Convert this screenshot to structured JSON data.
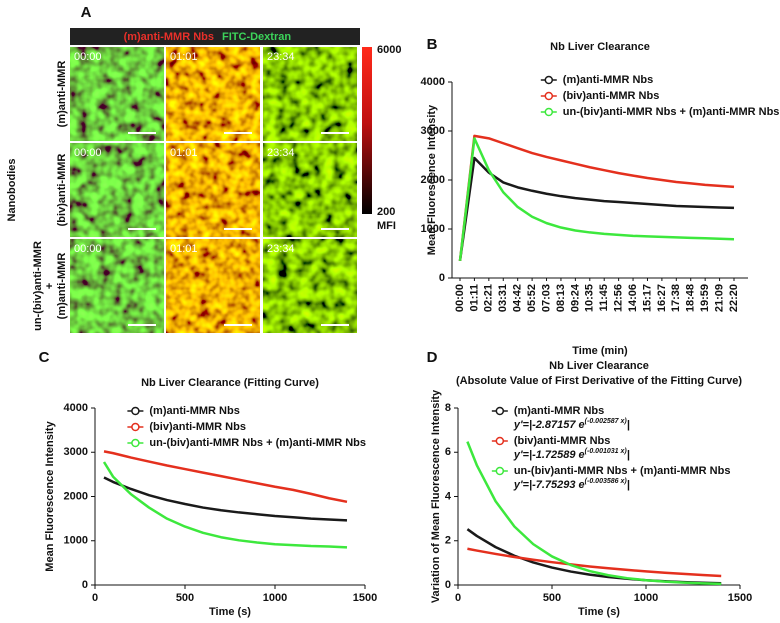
{
  "image_panel": {
    "panel_label": "A",
    "header": {
      "red_text": "(m)anti-MMR Nbs",
      "green_text": "FITC-Dextran"
    },
    "group_label": "Nanobodies",
    "rows": [
      {
        "label": [
          "(m)anti-MMR"
        ]
      },
      {
        "label": [
          "(biv)anti-MMR"
        ]
      },
      {
        "label": [
          "un-(biv)anti-MMR",
          "+",
          "(m)anti-MMR"
        ]
      }
    ],
    "timestamps": [
      "00:00",
      "01:01",
      "23:34"
    ],
    "colorbar": {
      "max_label": "6000",
      "min_label": "200",
      "unit": "MFI"
    }
  },
  "chart_data": [
    {
      "type": "line",
      "panel_label": "B",
      "title": "Nb Liver Clearance",
      "x_label": "Time (min)",
      "y_label": "Mean Fluorescence Intensity",
      "categories": [
        "00:00",
        "01:11",
        "02:21",
        "03:31",
        "04:42",
        "05:52",
        "07:03",
        "08:13",
        "09:24",
        "10:35",
        "11:45",
        "12:56",
        "14:06",
        "15:17",
        "16:27",
        "17:38",
        "18:48",
        "19:59",
        "21:09",
        "22:20"
      ],
      "ylim": [
        0,
        4000
      ],
      "yticks": [
        0,
        1000,
        2000,
        3000,
        4000
      ],
      "legend": "upper-right",
      "series": [
        {
          "name": "(m)anti-MMR Nbs",
          "color": "#1a1a1a",
          "values": [
            350,
            2450,
            2150,
            1950,
            1850,
            1780,
            1720,
            1670,
            1630,
            1600,
            1570,
            1550,
            1530,
            1510,
            1490,
            1470,
            1460,
            1450,
            1440,
            1430
          ]
        },
        {
          "name": "(biv)anti-MMR Nbs",
          "color": "#e4301e",
          "values": [
            350,
            2900,
            2850,
            2750,
            2650,
            2550,
            2470,
            2400,
            2330,
            2260,
            2200,
            2140,
            2090,
            2040,
            2000,
            1960,
            1930,
            1900,
            1880,
            1860
          ]
        },
        {
          "name": "un-(biv)anti-MMR Nbs + (m)anti-MMR Nbs",
          "color": "#3de83d",
          "values": [
            350,
            2850,
            2200,
            1750,
            1450,
            1250,
            1120,
            1030,
            970,
            930,
            900,
            880,
            860,
            850,
            840,
            830,
            820,
            810,
            800,
            790
          ]
        }
      ]
    },
    {
      "type": "line",
      "panel_label": "C",
      "title": "Nb Liver Clearance (Fitting Curve)",
      "x_label": "Time (s)",
      "y_label": "Mean Fluorescence Intensity",
      "x": [
        50,
        100,
        200,
        300,
        400,
        500,
        600,
        700,
        800,
        900,
        1000,
        1100,
        1200,
        1300,
        1400
      ],
      "xlim": [
        0,
        1500
      ],
      "xticks": [
        0,
        500,
        1000,
        1500
      ],
      "ylim": [
        0,
        4000
      ],
      "yticks": [
        0,
        1000,
        2000,
        3000,
        4000
      ],
      "legend": "upper-left",
      "series": [
        {
          "name": "(m)anti-MMR Nbs",
          "color": "#1a1a1a",
          "values": [
            2430,
            2330,
            2170,
            2030,
            1920,
            1830,
            1750,
            1690,
            1640,
            1600,
            1560,
            1530,
            1500,
            1480,
            1460
          ]
        },
        {
          "name": "(biv)anti-MMR Nbs",
          "color": "#e4301e",
          "values": [
            3020,
            2980,
            2880,
            2790,
            2700,
            2620,
            2540,
            2460,
            2380,
            2300,
            2220,
            2150,
            2060,
            1960,
            1880
          ]
        },
        {
          "name": "un-(biv)anti-MMR Nbs + (m)anti-MMR Nbs",
          "color": "#3de83d",
          "values": [
            2780,
            2450,
            2050,
            1750,
            1500,
            1320,
            1180,
            1080,
            1010,
            960,
            920,
            900,
            880,
            870,
            850
          ]
        }
      ]
    },
    {
      "type": "line",
      "panel_label": "D",
      "title": "Nb Liver Clearance",
      "subtitle": "(Absolute Value of First Derivative of the Fitting Curve)",
      "x_label": "Time (s)",
      "y_label": "Variation of Mean Fluorescence Intensity",
      "x": [
        50,
        100,
        200,
        300,
        400,
        500,
        600,
        700,
        800,
        900,
        1000,
        1100,
        1200,
        1300,
        1400
      ],
      "xlim": [
        0,
        1500
      ],
      "xticks": [
        0,
        500,
        1000,
        1500
      ],
      "ylim": [
        0,
        8
      ],
      "yticks": [
        0,
        2,
        4,
        6,
        8
      ],
      "legend": "upper-left",
      "series": [
        {
          "name": "(m)anti-MMR Nbs",
          "color": "#1a1a1a",
          "equation": {
            "text": "y'=|-2.87157 e",
            "exponent": "(-0.002587 x)",
            "end": "|"
          },
          "values": [
            2.523,
            2.217,
            1.712,
            1.322,
            1.021,
            0.788,
            0.608,
            0.47,
            0.363,
            0.28,
            0.216,
            0.167,
            0.129,
            0.0996,
            0.0769
          ]
        },
        {
          "name": "(biv)anti-MMR Nbs",
          "color": "#e4301e",
          "equation": {
            "text": "y'=|-1.72589 e",
            "exponent": "(-0.001031 x)",
            "end": "|"
          },
          "values": [
            1.639,
            1.557,
            1.404,
            1.266,
            1.143,
            1.031,
            0.93,
            0.838,
            0.756,
            0.682,
            0.615,
            0.555,
            0.501,
            0.452,
            0.407
          ]
        },
        {
          "name": "un-(biv)anti-MMR Nbs + (m)anti-MMR Nbs",
          "color": "#3de83d",
          "equation": {
            "text": "y'=|-7.75293 e",
            "exponent": "(-0.003586 x)",
            "end": "|"
          },
          "values": [
            6.481,
            5.417,
            3.785,
            2.645,
            1.848,
            1.291,
            0.902,
            0.63,
            0.44,
            0.308,
            0.215,
            0.15,
            0.105,
            0.0733,
            0.0512
          ]
        }
      ]
    }
  ]
}
